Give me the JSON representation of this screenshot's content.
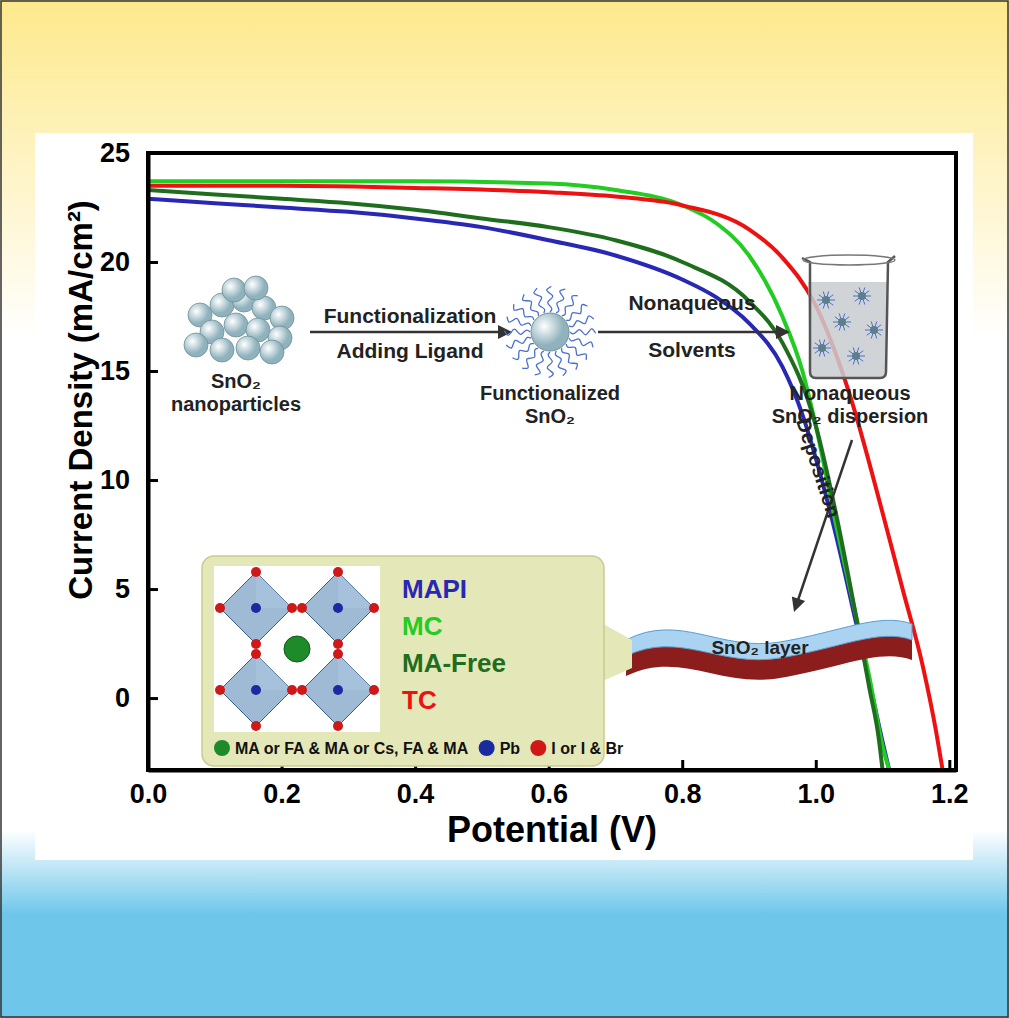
{
  "chart_data": {
    "type": "line",
    "x_label": "Potential (V)",
    "y_label": "Current Density (mA/cm²)",
    "xlim": [
      0,
      1.21
    ],
    "ylim": [
      -3.3,
      25
    ],
    "xticks": [
      {
        "value": 0,
        "label": "0.0"
      },
      0.2,
      0.4,
      0.6,
      0.8,
      {
        "value": 1,
        "label": "1.0"
      },
      1.2
    ],
    "yticks": [
      0,
      5,
      10,
      15,
      20,
      25
    ],
    "legend": "lower left",
    "series": [
      {
        "name": "MAPI",
        "color": "#2828b4",
        "x": [
          0,
          0.1,
          0.2,
          0.3,
          0.4,
          0.5,
          0.6,
          0.7,
          0.8,
          0.85,
          0.9,
          0.95,
          0.98,
          1.0,
          1.03,
          1.06,
          1.08,
          1.1,
          1.11
        ],
        "values": [
          22.9,
          22.7,
          22.5,
          22.3,
          22.0,
          21.6,
          21.0,
          20.3,
          19.2,
          18.4,
          17.2,
          15.2,
          13.0,
          11.0,
          7.5,
          3.5,
          0.8,
          -2.0,
          -3.3
        ]
      },
      {
        "name": "MC",
        "color": "#22cc22",
        "x": [
          0,
          0.2,
          0.4,
          0.6,
          0.7,
          0.8,
          0.85,
          0.9,
          0.95,
          0.98,
          1.0,
          1.03,
          1.06,
          1.08,
          1.1,
          1.11
        ],
        "values": [
          23.7,
          23.7,
          23.7,
          23.6,
          23.3,
          22.6,
          21.8,
          20.3,
          17.5,
          15.0,
          12.5,
          8.0,
          3.8,
          1.0,
          -2.2,
          -3.3
        ]
      },
      {
        "name": "MA-Free",
        "color": "#1e6e1e",
        "x": [
          0,
          0.1,
          0.2,
          0.3,
          0.4,
          0.5,
          0.6,
          0.7,
          0.8,
          0.9,
          0.95,
          1.0,
          1.03,
          1.06,
          1.08,
          1.095,
          1.1
        ],
        "values": [
          23.3,
          23.1,
          22.9,
          22.7,
          22.4,
          22.0,
          21.6,
          21.0,
          20.0,
          18.2,
          16.3,
          12.5,
          8.5,
          3.8,
          0.5,
          -2.0,
          -3.3
        ]
      },
      {
        "name": "TC",
        "color": "#ee1111",
        "x": [
          0,
          0.2,
          0.4,
          0.6,
          0.7,
          0.8,
          0.9,
          0.95,
          1.0,
          1.05,
          1.1,
          1.13,
          1.16,
          1.18,
          1.19
        ],
        "values": [
          23.5,
          23.5,
          23.4,
          23.2,
          23.0,
          22.6,
          21.5,
          20.2,
          18.0,
          14.0,
          8.5,
          5.0,
          1.5,
          -1.5,
          -3.3
        ]
      }
    ],
    "annotations": [
      [
        "SnO₂",
        "nanoparticles"
      ],
      [
        "Functionalization"
      ],
      [
        "Adding Ligand"
      ],
      [
        "Functionalized",
        "SnO₂"
      ],
      [
        "Nonaqueous"
      ],
      [
        "Solvents"
      ],
      [
        "Nonaqueous",
        "SnO₂ dispersion"
      ],
      [
        "Deposition"
      ],
      [
        "SnO₂ layer"
      ]
    ],
    "atom_legend": [
      {
        "name": "MA or FA & MA or Cs, FA & MA",
        "color": "#1f8a2a"
      },
      {
        "name": "Pb",
        "color": "#1a2aa0"
      },
      {
        "name": "I or I & Br",
        "color": "#d01818"
      }
    ]
  }
}
